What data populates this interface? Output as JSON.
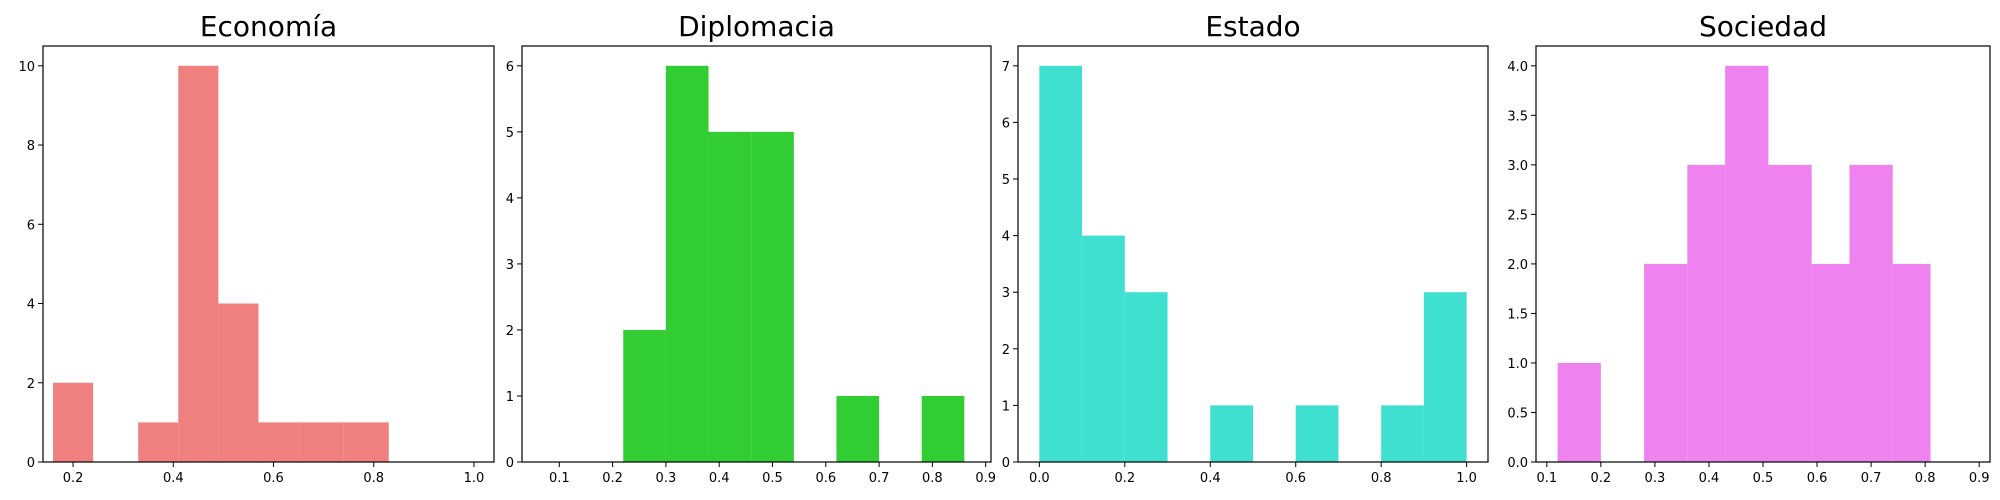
{
  "chart_data": [
    {
      "type": "bar",
      "title": "Economía",
      "color": "#f08080",
      "xlim": [
        0.14,
        1.04
      ],
      "ylim": [
        0,
        10.5
      ],
      "xticks": [
        0.2,
        0.4,
        0.6,
        0.8,
        1.0
      ],
      "xtick_labels": [
        "0.2",
        "0.4",
        "0.6",
        "0.8",
        "1.0"
      ],
      "yticks": [
        0,
        2,
        4,
        6,
        8,
        10
      ],
      "ytick_labels": [
        "0",
        "2",
        "4",
        "6",
        "8",
        "10"
      ],
      "bins": [
        {
          "x0": 0.16,
          "x1": 0.24,
          "count": 2
        },
        {
          "x0": 0.33,
          "x1": 0.41,
          "count": 1
        },
        {
          "x0": 0.41,
          "x1": 0.49,
          "count": 10
        },
        {
          "x0": 0.49,
          "x1": 0.57,
          "count": 4
        },
        {
          "x0": 0.57,
          "x1": 0.65,
          "count": 1
        },
        {
          "x0": 0.65,
          "x1": 0.74,
          "count": 1
        },
        {
          "x0": 0.74,
          "x1": 0.83,
          "count": 1
        }
      ]
    },
    {
      "type": "bar",
      "title": "Diplomacia",
      "color": "#32cd32",
      "xlim": [
        0.03,
        0.91
      ],
      "ylim": [
        0,
        6.3
      ],
      "xticks": [
        0.1,
        0.2,
        0.3,
        0.4,
        0.5,
        0.6,
        0.7,
        0.8,
        0.9
      ],
      "xtick_labels": [
        "0.1",
        "0.2",
        "0.3",
        "0.4",
        "0.5",
        "0.6",
        "0.7",
        "0.8",
        "0.9"
      ],
      "yticks": [
        0,
        1,
        2,
        3,
        4,
        5,
        6
      ],
      "ytick_labels": [
        "0",
        "1",
        "2",
        "3",
        "4",
        "5",
        "6"
      ],
      "bins": [
        {
          "x0": 0.22,
          "x1": 0.3,
          "count": 2
        },
        {
          "x0": 0.3,
          "x1": 0.38,
          "count": 6
        },
        {
          "x0": 0.38,
          "x1": 0.46,
          "count": 5
        },
        {
          "x0": 0.46,
          "x1": 0.54,
          "count": 5
        },
        {
          "x0": 0.62,
          "x1": 0.7,
          "count": 1
        },
        {
          "x0": 0.78,
          "x1": 0.86,
          "count": 1
        }
      ]
    },
    {
      "type": "bar",
      "title": "Estado",
      "color": "#40e0d0",
      "xlim": [
        -0.05,
        1.05
      ],
      "ylim": [
        0,
        7.35
      ],
      "xticks": [
        0.0,
        0.2,
        0.4,
        0.6,
        0.8,
        1.0
      ],
      "xtick_labels": [
        "0.0",
        "0.2",
        "0.4",
        "0.6",
        "0.8",
        "1.0"
      ],
      "yticks": [
        0,
        1,
        2,
        3,
        4,
        5,
        6,
        7
      ],
      "ytick_labels": [
        "0",
        "1",
        "2",
        "3",
        "4",
        "5",
        "6",
        "7"
      ],
      "bins": [
        {
          "x0": 0.0,
          "x1": 0.1,
          "count": 7
        },
        {
          "x0": 0.1,
          "x1": 0.2,
          "count": 4
        },
        {
          "x0": 0.2,
          "x1": 0.3,
          "count": 3
        },
        {
          "x0": 0.4,
          "x1": 0.5,
          "count": 1
        },
        {
          "x0": 0.6,
          "x1": 0.7,
          "count": 1
        },
        {
          "x0": 0.8,
          "x1": 0.9,
          "count": 1
        },
        {
          "x0": 0.9,
          "x1": 1.0,
          "count": 3
        }
      ]
    },
    {
      "type": "bar",
      "title": "Sociedad",
      "color": "#ee82ee",
      "xlim": [
        0.08,
        0.92
      ],
      "ylim": [
        0,
        4.2
      ],
      "xticks": [
        0.1,
        0.2,
        0.3,
        0.4,
        0.5,
        0.6,
        0.7,
        0.8,
        0.9
      ],
      "xtick_labels": [
        "0.1",
        "0.2",
        "0.3",
        "0.4",
        "0.5",
        "0.6",
        "0.7",
        "0.8",
        "0.9"
      ],
      "yticks": [
        0,
        0.5,
        1.0,
        1.5,
        2.0,
        2.5,
        3.0,
        3.5,
        4.0
      ],
      "ytick_labels": [
        "0.0",
        "0.5",
        "1.0",
        "1.5",
        "2.0",
        "2.5",
        "3.0",
        "3.5",
        "4.0"
      ],
      "bins": [
        {
          "x0": 0.12,
          "x1": 0.2,
          "count": 1
        },
        {
          "x0": 0.28,
          "x1": 0.36,
          "count": 2
        },
        {
          "x0": 0.36,
          "x1": 0.43,
          "count": 3
        },
        {
          "x0": 0.43,
          "x1": 0.51,
          "count": 4
        },
        {
          "x0": 0.51,
          "x1": 0.59,
          "count": 3
        },
        {
          "x0": 0.59,
          "x1": 0.66,
          "count": 2
        },
        {
          "x0": 0.66,
          "x1": 0.74,
          "count": 3
        },
        {
          "x0": 0.74,
          "x1": 0.81,
          "count": 2
        }
      ]
    }
  ]
}
